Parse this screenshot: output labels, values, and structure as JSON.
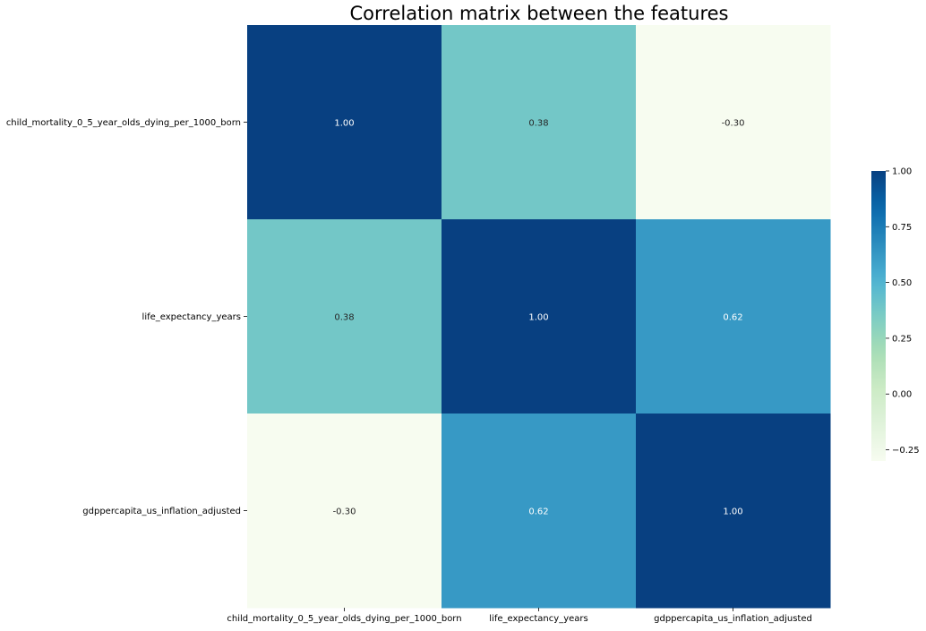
{
  "chart_data": {
    "type": "heatmap",
    "title": "Correlation matrix between the features",
    "xlabels": [
      "child_mortality_0_5_year_olds_dying_per_1000_born",
      "life_expectancy_years",
      "gdppercapita_us_inflation_adjusted"
    ],
    "ylabels": [
      "child_mortality_0_5_year_olds_dying_per_1000_born",
      "life_expectancy_years",
      "gdppercapita_us_inflation_adjusted"
    ],
    "values": [
      [
        1.0,
        0.38,
        -0.3
      ],
      [
        0.38,
        1.0,
        0.62
      ],
      [
        -0.3,
        0.62,
        1.0
      ]
    ],
    "annotations": [
      [
        "1.00",
        "0.38",
        "-0.30"
      ],
      [
        "0.38",
        "1.00",
        "0.62"
      ],
      [
        "-0.30",
        "0.62",
        "1.00"
      ]
    ],
    "colormap": "GnBu",
    "vmin": -0.3,
    "vmax": 1.0,
    "colorbar": {
      "ticks": [
        1.0,
        0.75,
        0.5,
        0.25,
        0.0,
        -0.25
      ],
      "tick_labels": [
        "1.00",
        "0.75",
        "0.50",
        "0.25",
        "0.00",
        "−0.25"
      ],
      "placement": "right"
    },
    "grid": false
  }
}
